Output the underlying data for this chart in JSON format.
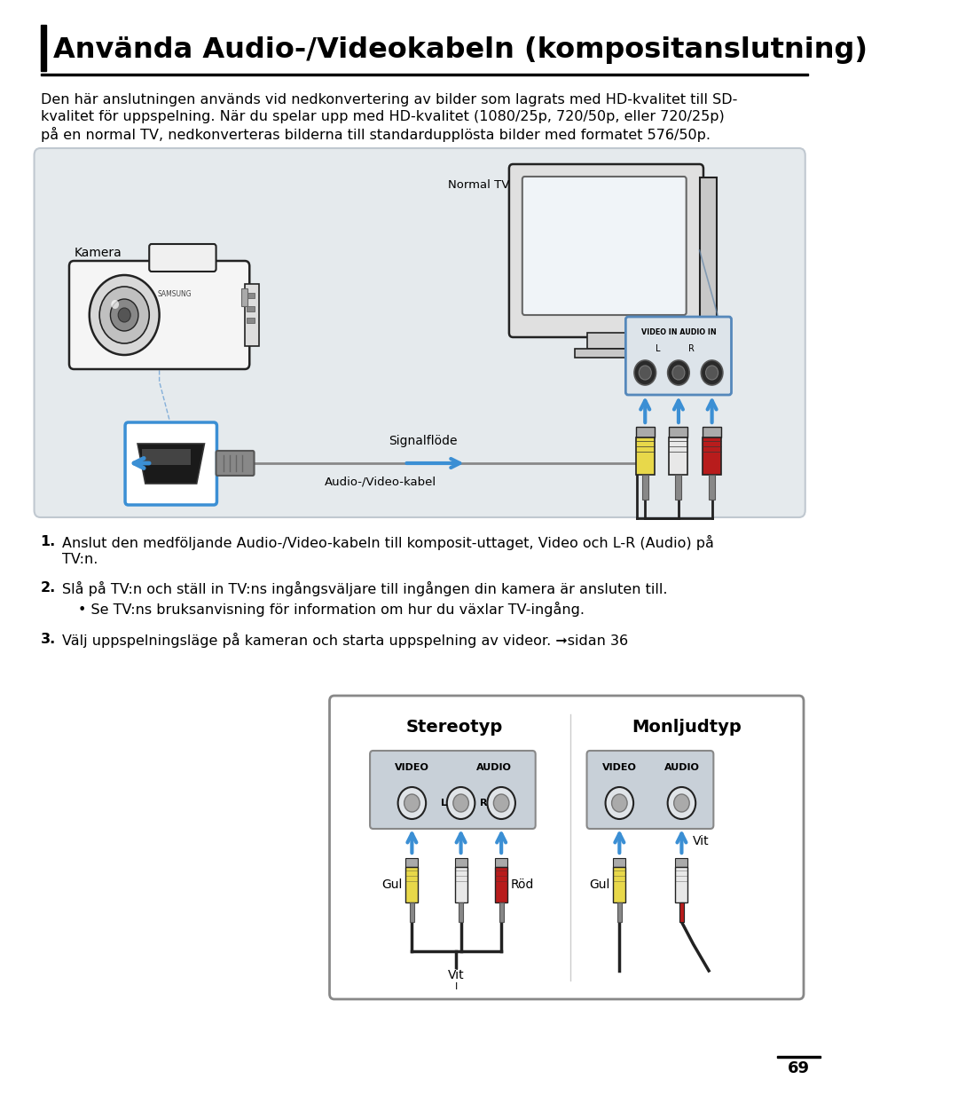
{
  "title": "Använda Audio-/Videokabeln (kompositanslutning)",
  "body_text_line1": "Den här anslutningen används vid nedkonvertering av bilder som lagrats med HD-kvalitet till SD-",
  "body_text_line2": "kvalitet för uppspelning. När du spelar upp med HD-kvalitet (1080/25p, 720/50p, eller 720/25p)",
  "body_text_line3": "på en normal TV, nedkonverteras bilderna till standardupplösta bilder med formatet 576/50p.",
  "label_kamera": "Kamera",
  "label_normal_tv": "Normal TV",
  "label_signalflode": "Signalflöde",
  "label_av_kabel": "Audio-/Video-kabel",
  "label_video_in_line1": "VIDEO IN AUDIO IN",
  "label_l": "L",
  "label_r": "R",
  "step1_num": "1.",
  "step1_text": "Anslut den medföljande Audio-/Video-kabeln till komposit-uttaget, Video och L-R (Audio) på\n    TV:n.",
  "step2_num": "2.",
  "step2_text": "Slå på TV:n och ställ in TV:ns ingångsväljare till ingången din kamera är ansluten till.",
  "step2_bullet": "Se TV:ns bruksanvisning för information om hur du växlar TV-ingång.",
  "step3_num": "3.",
  "step3_text": "Välj uppspelningsläge på kameran och starta uppspelning av videor. ➞sidan 36",
  "stereo_title": "Stereotyp",
  "mono_title": "Monljudtyp",
  "label_gul": "Gul",
  "label_vit": "Vit",
  "label_rod": "Röd",
  "label_gul2": "Gul",
  "label_vit2": "Vit",
  "page_number": "69",
  "bg_color": "#ffffff",
  "text_color": "#000000",
  "diagram_bg": "#e5eaed",
  "blue_color": "#3b8fd4",
  "yellow_color": "#e8d84a",
  "red_color": "#b81c1c",
  "white_plug": "#e8e8e8",
  "gray_plug": "#999999",
  "dark_color": "#222222",
  "port_bg": "#c8d0d8",
  "box_border": "#888888"
}
